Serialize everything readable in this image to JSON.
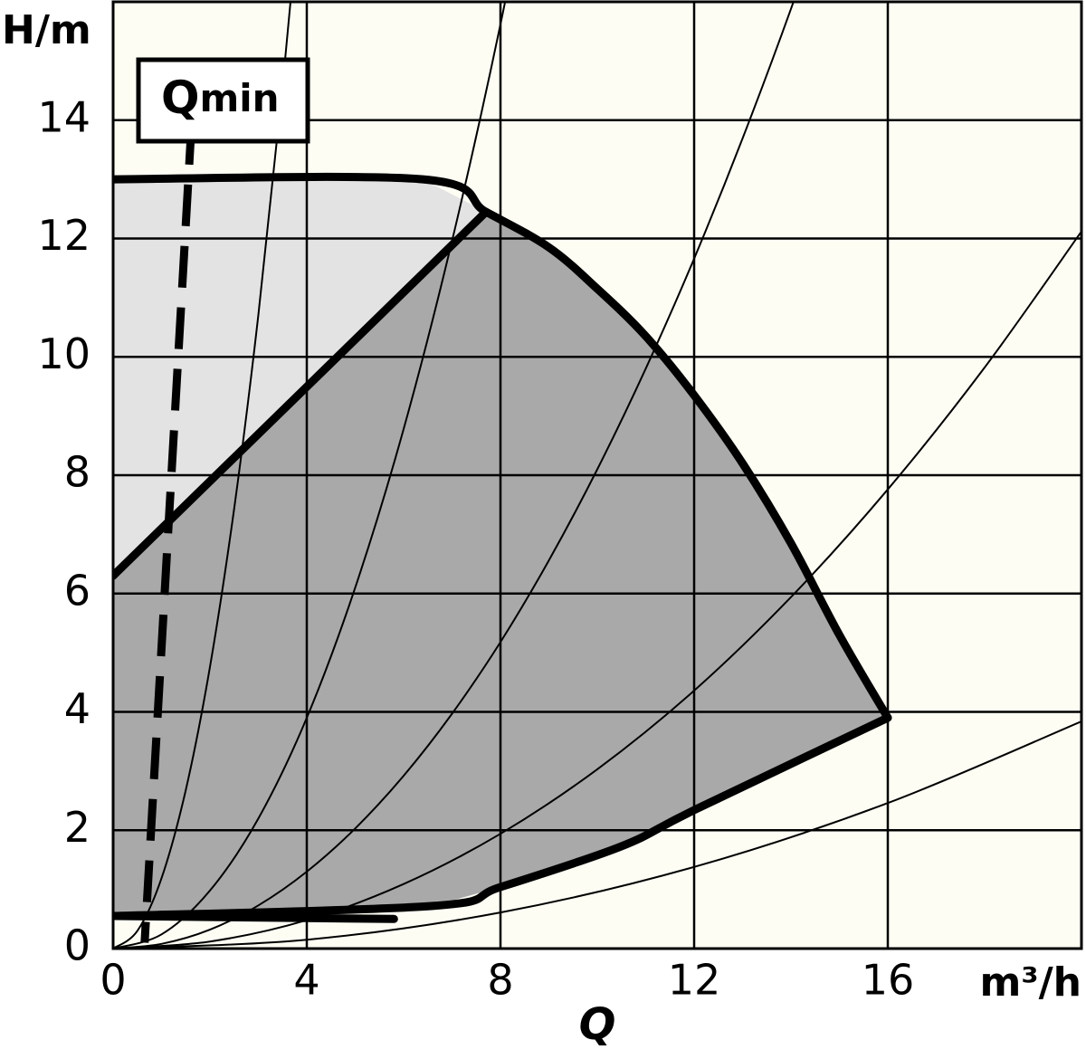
{
  "chart_data": {
    "type": "pump-curve",
    "ylabel": "H/m",
    "xlabel": "Q",
    "xunit": "m³/h",
    "annotation": {
      "text": "Q",
      "sub": "min"
    },
    "xlim": [
      0,
      20
    ],
    "ylim": [
      0,
      16
    ],
    "xticks": [
      0,
      4,
      8,
      12,
      16
    ],
    "yticks": [
      0,
      2,
      4,
      6,
      8,
      10,
      12,
      14
    ],
    "grid": true,
    "background": "#fdfdf4",
    "line_color": "#000000",
    "areas": [
      {
        "color": "#e3e3e3",
        "x": [
          0,
          6.4,
          7.7,
          0
        ],
        "values": [
          13,
          13,
          12.45,
          6.3
        ]
      },
      {
        "color": "#a9a9a9",
        "x": [
          0,
          7.7,
          9,
          10,
          11,
          12,
          13,
          14,
          15,
          16,
          12,
          10.5,
          8,
          6.6,
          0
        ],
        "values": [
          6.3,
          12.45,
          11.85,
          11.15,
          10.35,
          9.35,
          8.2,
          6.85,
          5.3,
          3.9,
          2.34,
          1.73,
          1.04,
          0.72,
          0.55
        ]
      }
    ],
    "envelope": [
      {
        "x": [
          0,
          6.4,
          7.7,
          9,
          10,
          11,
          12,
          13,
          14,
          15,
          16
        ],
        "values": [
          13,
          13,
          12.45,
          11.85,
          11.15,
          10.35,
          9.35,
          8.2,
          6.85,
          5.3,
          3.9
        ]
      },
      {
        "x": [
          0,
          7.7
        ],
        "values": [
          6.3,
          12.45
        ]
      },
      {
        "x": [
          0,
          6.6,
          8,
          10.5,
          12,
          16
        ],
        "values": [
          0.55,
          0.72,
          1.04,
          1.73,
          2.34,
          3.9
        ]
      },
      {
        "x": [
          0,
          5.8
        ],
        "values": [
          0.55,
          0.5
        ]
      }
    ],
    "system_curves": [
      {
        "x": [
          0,
          0.5,
          1,
          1.5,
          2,
          2.5,
          3,
          3.5,
          4
        ],
        "values": [
          0,
          0.3,
          1.19,
          2.68,
          4.76,
          7.44,
          10.71,
          14.58,
          19.04
        ]
      },
      {
        "x": [
          0,
          1,
          2,
          3,
          4,
          5,
          6,
          7,
          8,
          9
        ],
        "values": [
          0,
          0.24,
          0.98,
          2.2,
          3.9,
          6.1,
          8.78,
          11.96,
          15.62,
          19.76
        ]
      },
      {
        "x": [
          0,
          1,
          2,
          3,
          4,
          5,
          6,
          7,
          8,
          9,
          10,
          11,
          12,
          13,
          14,
          15
        ],
        "values": [
          0,
          0.08,
          0.32,
          0.73,
          1.3,
          2.03,
          2.92,
          3.97,
          5.18,
          6.56,
          8.1,
          9.8,
          11.66,
          13.69,
          15.88,
          18.23
        ]
      },
      {
        "x": [
          0,
          2,
          4,
          6,
          8,
          10,
          12,
          14,
          16,
          18,
          20
        ],
        "values": [
          0,
          0.12,
          0.48,
          1.09,
          1.94,
          3.03,
          4.36,
          5.94,
          7.76,
          9.82,
          12.12
        ]
      },
      {
        "x": [
          0,
          4,
          8,
          12,
          16,
          20
        ],
        "values": [
          0,
          0.15,
          0.61,
          1.38,
          2.46,
          3.84
        ]
      }
    ],
    "qmin": {
      "x": [
        1.62,
        0.65
      ],
      "values": [
        13.95,
        0.1
      ]
    }
  }
}
